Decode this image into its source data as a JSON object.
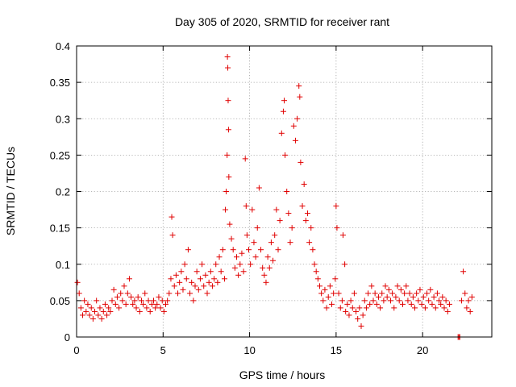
{
  "chart_data": {
    "type": "scatter",
    "title": "Day 305 of 2020, SRMTID for receiver rant",
    "xlabel": "GPS time / hours",
    "ylabel": "SRMTID / TECUs",
    "xlim": [
      0,
      24
    ],
    "ylim": [
      0,
      0.4
    ],
    "xticks": [
      0,
      5,
      10,
      15,
      20
    ],
    "xtick_labels": [
      "0",
      "5",
      "10",
      "15",
      "20"
    ],
    "yticks": [
      0,
      0.05,
      0.1,
      0.15,
      0.2,
      0.25,
      0.3,
      0.35,
      0.4
    ],
    "ytick_labels": [
      "0",
      "0.05",
      "0.1",
      "0.15",
      "0.2",
      "0.25",
      "0.3",
      "0.35",
      "0.4"
    ],
    "grid": true,
    "marker": "+",
    "color": "#e00000",
    "series": [
      {
        "name": "SRMTID",
        "points": [
          [
            0.05,
            0.075
          ],
          [
            0.15,
            0.06
          ],
          [
            0.25,
            0.04
          ],
          [
            0.35,
            0.03
          ],
          [
            0.45,
            0.05
          ],
          [
            0.55,
            0.035
          ],
          [
            0.65,
            0.045
          ],
          [
            0.75,
            0.03
          ],
          [
            0.85,
            0.04
          ],
          [
            0.95,
            0.025
          ],
          [
            1.05,
            0.035
          ],
          [
            1.15,
            0.05
          ],
          [
            1.25,
            0.03
          ],
          [
            1.35,
            0.04
          ],
          [
            1.45,
            0.025
          ],
          [
            1.55,
            0.035
          ],
          [
            1.65,
            0.045
          ],
          [
            1.75,
            0.03
          ],
          [
            1.85,
            0.04
          ],
          [
            1.95,
            0.035
          ],
          [
            2.05,
            0.05
          ],
          [
            2.15,
            0.065
          ],
          [
            2.25,
            0.045
          ],
          [
            2.35,
            0.055
          ],
          [
            2.45,
            0.04
          ],
          [
            2.55,
            0.06
          ],
          [
            2.65,
            0.05
          ],
          [
            2.75,
            0.07
          ],
          [
            2.85,
            0.045
          ],
          [
            2.95,
            0.06
          ],
          [
            3.05,
            0.08
          ],
          [
            3.15,
            0.055
          ],
          [
            3.25,
            0.045
          ],
          [
            3.35,
            0.05
          ],
          [
            3.45,
            0.04
          ],
          [
            3.55,
            0.055
          ],
          [
            3.65,
            0.035
          ],
          [
            3.75,
            0.05
          ],
          [
            3.85,
            0.045
          ],
          [
            3.95,
            0.06
          ],
          [
            4.05,
            0.04
          ],
          [
            4.15,
            0.05
          ],
          [
            4.25,
            0.035
          ],
          [
            4.35,
            0.045
          ],
          [
            4.45,
            0.05
          ],
          [
            4.55,
            0.04
          ],
          [
            4.65,
            0.045
          ],
          [
            4.75,
            0.055
          ],
          [
            4.85,
            0.04
          ],
          [
            4.95,
            0.05
          ],
          [
            5.05,
            0.035
          ],
          [
            5.15,
            0.045
          ],
          [
            5.25,
            0.05
          ],
          [
            5.35,
            0.06
          ],
          [
            5.45,
            0.08
          ],
          [
            5.5,
            0.165
          ],
          [
            5.55,
            0.14
          ],
          [
            5.65,
            0.07
          ],
          [
            5.75,
            0.085
          ],
          [
            5.85,
            0.06
          ],
          [
            5.95,
            0.075
          ],
          [
            6.05,
            0.09
          ],
          [
            6.15,
            0.065
          ],
          [
            6.25,
            0.1
          ],
          [
            6.35,
            0.08
          ],
          [
            6.45,
            0.12
          ],
          [
            6.55,
            0.06
          ],
          [
            6.65,
            0.075
          ],
          [
            6.75,
            0.05
          ],
          [
            6.85,
            0.07
          ],
          [
            6.95,
            0.09
          ],
          [
            7.05,
            0.065
          ],
          [
            7.15,
            0.08
          ],
          [
            7.25,
            0.1
          ],
          [
            7.35,
            0.07
          ],
          [
            7.45,
            0.085
          ],
          [
            7.55,
            0.06
          ],
          [
            7.65,
            0.075
          ],
          [
            7.75,
            0.09
          ],
          [
            7.85,
            0.07
          ],
          [
            7.95,
            0.08
          ],
          [
            8.05,
            0.1
          ],
          [
            8.15,
            0.075
          ],
          [
            8.25,
            0.11
          ],
          [
            8.35,
            0.09
          ],
          [
            8.45,
            0.12
          ],
          [
            8.55,
            0.08
          ],
          [
            8.6,
            0.175
          ],
          [
            8.65,
            0.2
          ],
          [
            8.7,
            0.25
          ],
          [
            8.72,
            0.385
          ],
          [
            8.74,
            0.37
          ],
          [
            8.76,
            0.325
          ],
          [
            8.78,
            0.285
          ],
          [
            8.8,
            0.22
          ],
          [
            8.85,
            0.155
          ],
          [
            8.95,
            0.135
          ],
          [
            9.05,
            0.12
          ],
          [
            9.15,
            0.095
          ],
          [
            9.25,
            0.11
          ],
          [
            9.35,
            0.085
          ],
          [
            9.45,
            0.1
          ],
          [
            9.55,
            0.115
          ],
          [
            9.65,
            0.09
          ],
          [
            9.75,
            0.245
          ],
          [
            9.8,
            0.18
          ],
          [
            9.85,
            0.14
          ],
          [
            9.95,
            0.12
          ],
          [
            10.05,
            0.1
          ],
          [
            10.15,
            0.175
          ],
          [
            10.25,
            0.13
          ],
          [
            10.35,
            0.11
          ],
          [
            10.45,
            0.15
          ],
          [
            10.55,
            0.205
          ],
          [
            10.65,
            0.12
          ],
          [
            10.75,
            0.095
          ],
          [
            10.85,
            0.085
          ],
          [
            10.95,
            0.075
          ],
          [
            11.05,
            0.11
          ],
          [
            11.15,
            0.095
          ],
          [
            11.25,
            0.13
          ],
          [
            11.35,
            0.105
          ],
          [
            11.45,
            0.14
          ],
          [
            11.55,
            0.175
          ],
          [
            11.65,
            0.12
          ],
          [
            11.75,
            0.16
          ],
          [
            11.85,
            0.28
          ],
          [
            11.95,
            0.31
          ],
          [
            12.0,
            0.325
          ],
          [
            12.05,
            0.25
          ],
          [
            12.15,
            0.2
          ],
          [
            12.25,
            0.17
          ],
          [
            12.35,
            0.13
          ],
          [
            12.45,
            0.15
          ],
          [
            12.55,
            0.29
          ],
          [
            12.65,
            0.27
          ],
          [
            12.75,
            0.3
          ],
          [
            12.85,
            0.345
          ],
          [
            12.9,
            0.33
          ],
          [
            12.95,
            0.24
          ],
          [
            13.05,
            0.18
          ],
          [
            13.15,
            0.21
          ],
          [
            13.25,
            0.16
          ],
          [
            13.35,
            0.17
          ],
          [
            13.45,
            0.13
          ],
          [
            13.55,
            0.15
          ],
          [
            13.65,
            0.12
          ],
          [
            13.75,
            0.1
          ],
          [
            13.85,
            0.09
          ],
          [
            13.95,
            0.08
          ],
          [
            14.05,
            0.07
          ],
          [
            14.15,
            0.06
          ],
          [
            14.25,
            0.05
          ],
          [
            14.35,
            0.065
          ],
          [
            14.45,
            0.04
          ],
          [
            14.55,
            0.055
          ],
          [
            14.65,
            0.07
          ],
          [
            14.75,
            0.045
          ],
          [
            14.85,
            0.06
          ],
          [
            14.95,
            0.08
          ],
          [
            15.0,
            0.18
          ],
          [
            15.05,
            0.15
          ],
          [
            15.15,
            0.06
          ],
          [
            15.25,
            0.04
          ],
          [
            15.35,
            0.05
          ],
          [
            15.4,
            0.14
          ],
          [
            15.5,
            0.1
          ],
          [
            15.55,
            0.035
          ],
          [
            15.65,
            0.045
          ],
          [
            15.75,
            0.03
          ],
          [
            15.85,
            0.05
          ],
          [
            15.95,
            0.04
          ],
          [
            16.05,
            0.06
          ],
          [
            16.15,
            0.035
          ],
          [
            16.25,
            0.025
          ],
          [
            16.35,
            0.04
          ],
          [
            16.45,
            0.015
          ],
          [
            16.55,
            0.03
          ],
          [
            16.65,
            0.05
          ],
          [
            16.75,
            0.04
          ],
          [
            16.85,
            0.06
          ],
          [
            16.95,
            0.045
          ],
          [
            17.05,
            0.07
          ],
          [
            17.15,
            0.05
          ],
          [
            17.25,
            0.06
          ],
          [
            17.35,
            0.045
          ],
          [
            17.45,
            0.055
          ],
          [
            17.55,
            0.04
          ],
          [
            17.65,
            0.06
          ],
          [
            17.75,
            0.05
          ],
          [
            17.85,
            0.07
          ],
          [
            17.95,
            0.055
          ],
          [
            18.05,
            0.065
          ],
          [
            18.15,
            0.05
          ],
          [
            18.25,
            0.06
          ],
          [
            18.35,
            0.04
          ],
          [
            18.45,
            0.055
          ],
          [
            18.55,
            0.07
          ],
          [
            18.65,
            0.05
          ],
          [
            18.75,
            0.065
          ],
          [
            18.85,
            0.045
          ],
          [
            18.95,
            0.06
          ],
          [
            19.05,
            0.07
          ],
          [
            19.15,
            0.05
          ],
          [
            19.25,
            0.06
          ],
          [
            19.35,
            0.045
          ],
          [
            19.45,
            0.055
          ],
          [
            19.55,
            0.04
          ],
          [
            19.65,
            0.06
          ],
          [
            19.75,
            0.05
          ],
          [
            19.85,
            0.065
          ],
          [
            19.95,
            0.045
          ],
          [
            20.05,
            0.055
          ],
          [
            20.15,
            0.04
          ],
          [
            20.25,
            0.06
          ],
          [
            20.35,
            0.05
          ],
          [
            20.45,
            0.065
          ],
          [
            20.55,
            0.045
          ],
          [
            20.65,
            0.055
          ],
          [
            20.75,
            0.04
          ],
          [
            20.85,
            0.06
          ],
          [
            20.95,
            0.05
          ],
          [
            21.05,
            0.045
          ],
          [
            21.15,
            0.055
          ],
          [
            21.25,
            0.04
          ],
          [
            21.35,
            0.05
          ],
          [
            21.45,
            0.035
          ],
          [
            21.55,
            0.045
          ],
          [
            22.05,
            0.0
          ],
          [
            22.1,
            0.0
          ],
          [
            22.15,
            0.0
          ],
          [
            22.25,
            0.05
          ],
          [
            22.35,
            0.09
          ],
          [
            22.45,
            0.06
          ],
          [
            22.55,
            0.04
          ],
          [
            22.65,
            0.05
          ],
          [
            22.75,
            0.035
          ],
          [
            22.85,
            0.055
          ]
        ]
      }
    ]
  }
}
